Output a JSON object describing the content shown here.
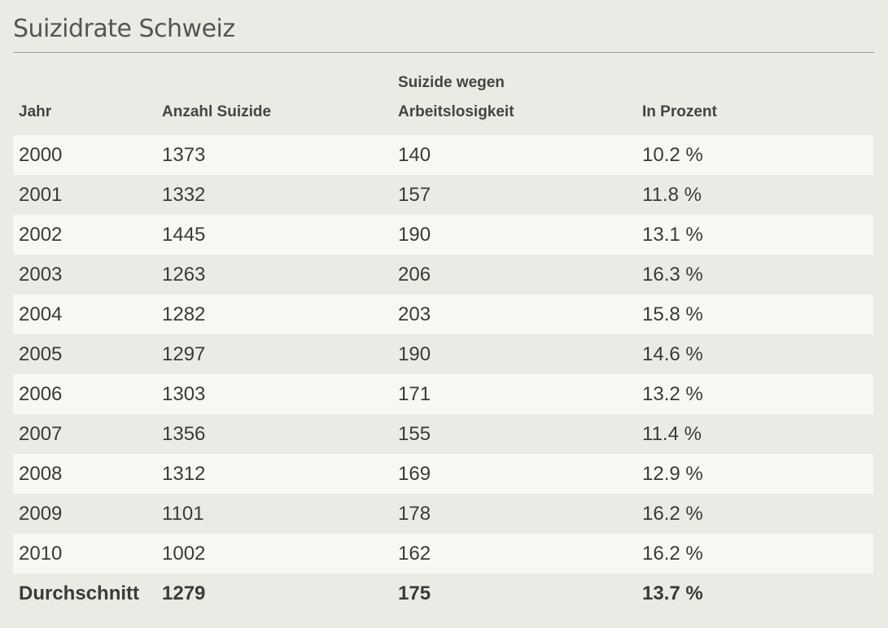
{
  "title": "Suizidrate Schweiz",
  "chart_data": {
    "type": "table",
    "title": "Suizidrate Schweiz",
    "columns": [
      "Jahr",
      "Anzahl Suizide",
      "Suizide wegen Arbeitslosigkeit",
      "In Prozent"
    ],
    "header": {
      "col1": "Jahr",
      "col2": "Anzahl Suizide",
      "col3_line1": "Suizide wegen",
      "col3_line2": "Arbeitslosigkeit",
      "col4": "In Prozent"
    },
    "rows": [
      [
        "2000",
        "1373",
        "140",
        "10.2 %"
      ],
      [
        "2001",
        "1332",
        "157",
        "11.8 %"
      ],
      [
        "2002",
        "1445",
        "190",
        "13.1 %"
      ],
      [
        "2003",
        "1263",
        "206",
        "16.3 %"
      ],
      [
        "2004",
        "1282",
        "203",
        "15.8 %"
      ],
      [
        "2005",
        "1297",
        "190",
        "14.6 %"
      ],
      [
        "2006",
        "1303",
        "171",
        "13.2 %"
      ],
      [
        "2007",
        "1356",
        "155",
        "11.4 %"
      ],
      [
        "2008",
        "1312",
        "169",
        "12.9 %"
      ],
      [
        "2009",
        "1101",
        "178",
        "16.2 %"
      ],
      [
        "2010",
        "1002",
        "162",
        "16.2 %"
      ]
    ],
    "summary": [
      "Durchschnitt",
      "1279",
      "175",
      "13.7 %"
    ]
  }
}
